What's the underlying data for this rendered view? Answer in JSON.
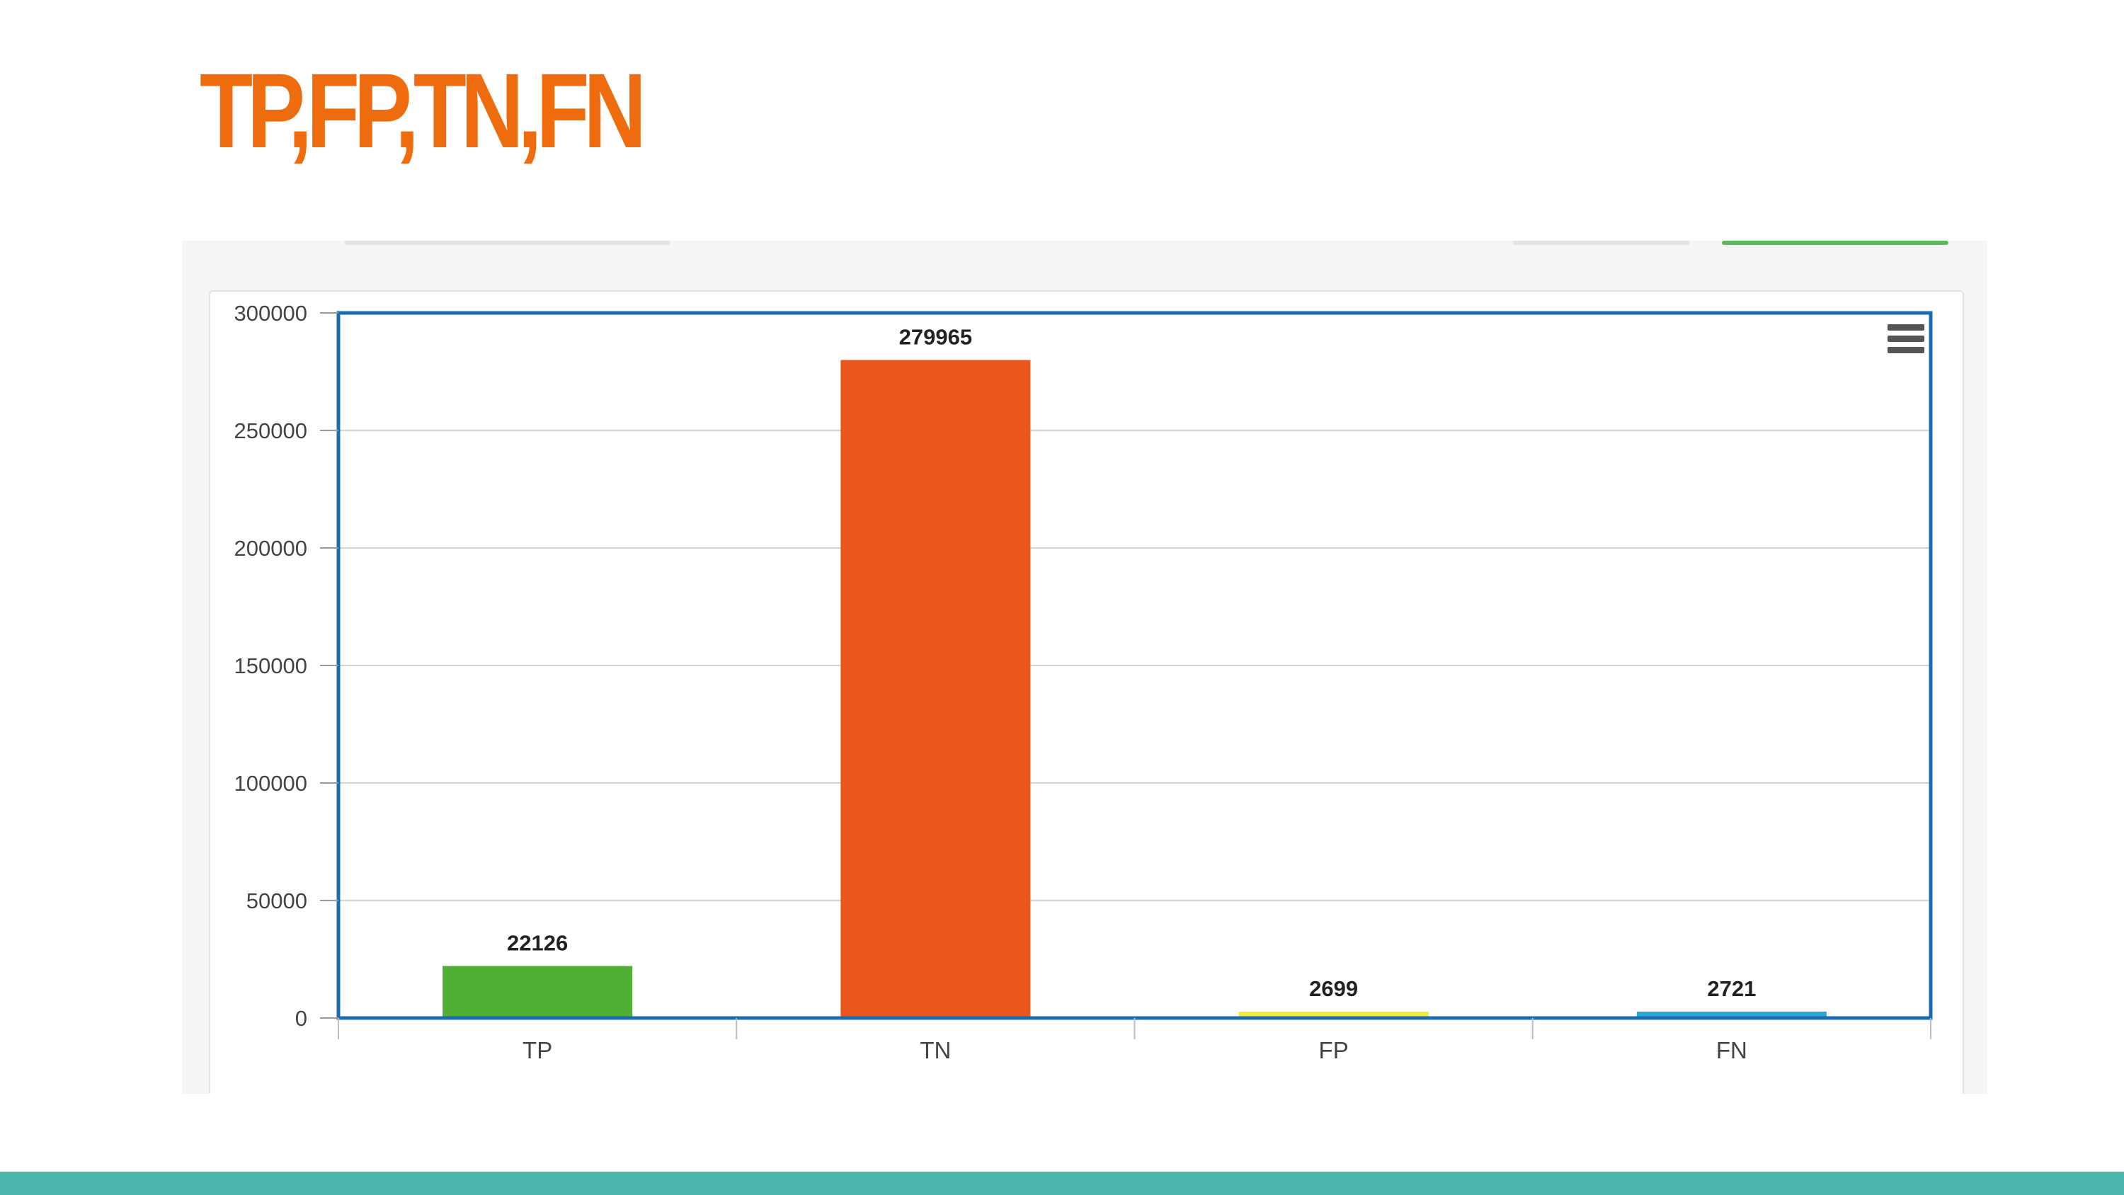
{
  "slide": {
    "title": "TP,FP,TN,FN"
  },
  "colors": {
    "title": "#ee6c0e",
    "footer": "#4db6ac",
    "axis_frame": "#1a6bb0",
    "grid": "#d4d4d4"
  },
  "chart_data": {
    "type": "bar",
    "categories": [
      "TP",
      "TN",
      "FP",
      "FN"
    ],
    "values": [
      22126,
      279965,
      2699,
      2721
    ],
    "data_labels": [
      "22126",
      "279965",
      "2699",
      "2721"
    ],
    "bar_colors": [
      "#4fb034",
      "#eb561d",
      "#f2ea3a",
      "#2aa6d8"
    ],
    "ylim": [
      0,
      300000
    ],
    "yticks": [
      0,
      50000,
      100000,
      150000,
      200000,
      250000,
      300000
    ],
    "ytick_labels": [
      "0",
      "50000",
      "100000",
      "150000",
      "200000",
      "250000",
      "300000"
    ],
    "grid": true,
    "legend": "none"
  },
  "chart_menu": {
    "icon": "hamburger-menu-icon"
  }
}
